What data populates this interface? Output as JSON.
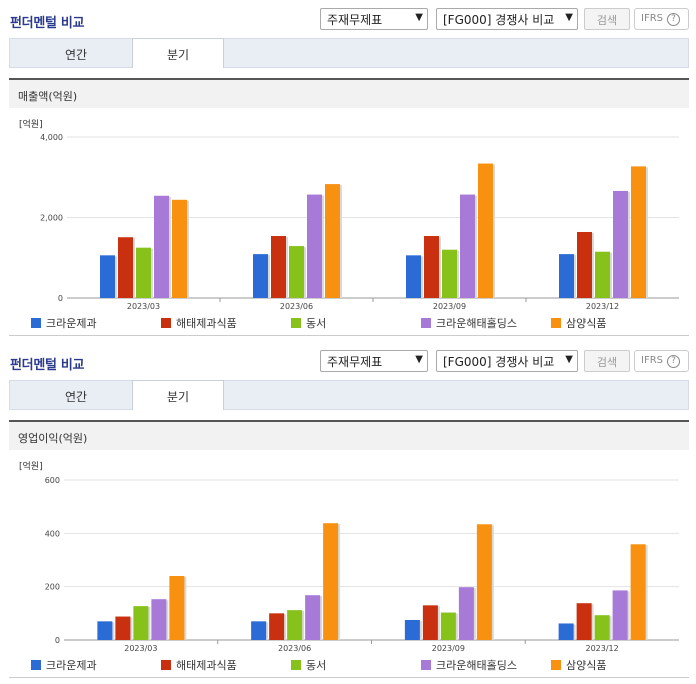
{
  "panels": [
    {
      "header_title": "펀더멘털 비교",
      "select_statement": "주재무제표",
      "select_group": "[FG000] 경쟁사 비교",
      "search_label": "검색",
      "ifrs_label": "IFRS",
      "tabs": [
        "연간",
        "분기"
      ],
      "active_tab": 1,
      "chart_title": "매출액(억원)",
      "unit_label": "[억원]"
    },
    {
      "header_title": "펀더멘털 비교",
      "select_statement": "주재무제표",
      "select_group": "[FG000] 경쟁사 비교",
      "search_label": "검색",
      "ifrs_label": "IFRS",
      "tabs": [
        "연간",
        "분기"
      ],
      "active_tab": 1,
      "chart_title": "영업이익(억원)",
      "unit_label": "[억원]"
    }
  ],
  "colors": [
    "#2a6bd6",
    "#c9300f",
    "#86c21a",
    "#a77ad8",
    "#f7910f"
  ],
  "chart_data": [
    {
      "type": "bar",
      "title": "매출액(억원)",
      "ylabel": "[억원]",
      "categories": [
        "2023/03",
        "2023/06",
        "2023/09",
        "2023/12"
      ],
      "ylim": [
        0,
        4000
      ],
      "yticks": [
        0,
        2000,
        4000
      ],
      "ytick_labels": [
        "0",
        "2,000",
        "4,000"
      ],
      "grid": true,
      "legend": "bottom",
      "series": [
        {
          "name": "크라운제과",
          "values": [
            1060,
            1090,
            1060,
            1090
          ]
        },
        {
          "name": "해태제과식품",
          "values": [
            1510,
            1540,
            1540,
            1640
          ]
        },
        {
          "name": "동서",
          "values": [
            1250,
            1290,
            1200,
            1150
          ]
        },
        {
          "name": "크라운해태홀딩스",
          "values": [
            2540,
            2570,
            2570,
            2660
          ]
        },
        {
          "name": "삼양식품",
          "values": [
            2440,
            2830,
            3340,
            3270
          ]
        }
      ]
    },
    {
      "type": "bar",
      "title": "영업이익(억원)",
      "ylabel": "[억원]",
      "categories": [
        "2023/03",
        "2023/06",
        "2023/09",
        "2023/12"
      ],
      "ylim": [
        0,
        600
      ],
      "yticks": [
        0,
        200,
        400,
        600
      ],
      "ytick_labels": [
        "0",
        "200",
        "400",
        "600"
      ],
      "grid": true,
      "legend": "bottom",
      "series": [
        {
          "name": "크라운제과",
          "values": [
            70,
            70,
            75,
            62
          ]
        },
        {
          "name": "해태제과식품",
          "values": [
            88,
            100,
            130,
            138
          ]
        },
        {
          "name": "동서",
          "values": [
            127,
            112,
            103,
            93
          ]
        },
        {
          "name": "크라운해태홀딩스",
          "values": [
            153,
            168,
            198,
            186
          ]
        },
        {
          "name": "삼양식품",
          "values": [
            240,
            438,
            434,
            359
          ]
        }
      ]
    }
  ]
}
